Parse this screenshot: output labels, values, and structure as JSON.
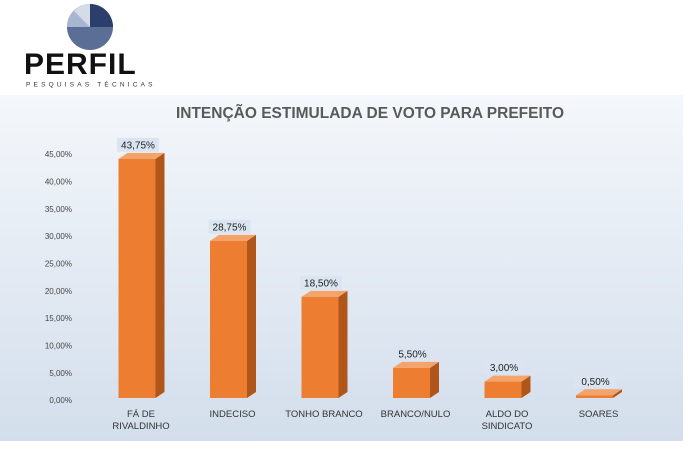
{
  "logo": {
    "name": "PERFIL",
    "tagline": "PESQUISAS TÉCNICAS"
  },
  "chart_data": {
    "type": "bar",
    "title": "INTENÇÃO ESTIMULADA DE VOTO PARA PREFEITO",
    "categories": [
      "FÁ DE RIVALDINHO",
      "INDECISO",
      "TONHO BRANCO",
      "BRANCO/NULO",
      "ALDO DO SINDICATO",
      "SOARES"
    ],
    "values": [
      43.75,
      28.75,
      18.5,
      5.5,
      3.0,
      0.5
    ],
    "value_labels": [
      "43,75%",
      "28,75%",
      "18,50%",
      "5,50%",
      "3,00%",
      "0,50%"
    ],
    "color": "#ed7d31",
    "ylim": [
      0,
      45
    ],
    "yticks": [
      {
        "value": 0,
        "label": "0,00%"
      },
      {
        "value": 5,
        "label": "5,00%"
      },
      {
        "value": 10,
        "label": "10,00%"
      },
      {
        "value": 15,
        "label": "15,00%"
      },
      {
        "value": 20,
        "label": "20,00%"
      },
      {
        "value": 25,
        "label": "25,00%"
      },
      {
        "value": 30,
        "label": "30,00%"
      },
      {
        "value": 35,
        "label": "35,00%"
      },
      {
        "value": 40,
        "label": "40,00%"
      },
      {
        "value": 45,
        "label": "45,00%"
      }
    ],
    "grid": false
  }
}
